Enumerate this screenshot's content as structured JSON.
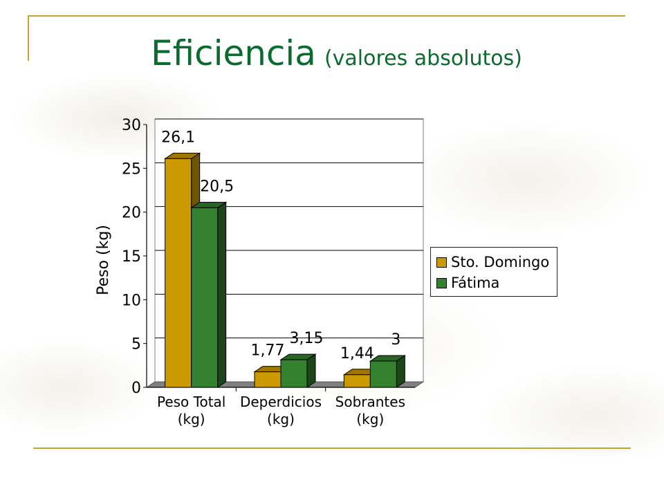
{
  "slide": {
    "title": "Eficiencia",
    "subtitle": "(valores absolutos)"
  },
  "colors": {
    "title": "#0a6b2e",
    "accent_line": "#c9a227",
    "sto_domingo": "#cc9900",
    "fatima": "#33802f"
  },
  "chart_data": {
    "type": "bar",
    "style": "3d-clustered",
    "title": "",
    "xlabel": "",
    "ylabel": "Peso (kg)",
    "ylim": [
      0,
      30
    ],
    "yticks": [
      "0",
      "5",
      "10",
      "15",
      "20",
      "25",
      "30"
    ],
    "grid": true,
    "legend_position": "right",
    "categories": [
      [
        "Peso Total",
        "(kg)"
      ],
      [
        "Deperdicios",
        "(kg)"
      ],
      [
        "Sobrantes",
        "(kg)"
      ]
    ],
    "series": [
      {
        "name": "Sto. Domingo",
        "color": "#cc9900",
        "values": [
          26.1,
          1.77,
          1.44
        ],
        "labels": [
          "26,1",
          "1,77",
          "1,44"
        ]
      },
      {
        "name": "Fátima",
        "color": "#33802f",
        "values": [
          20.5,
          3.15,
          3
        ],
        "labels": [
          "20,5",
          "3,15",
          "3"
        ]
      }
    ]
  }
}
